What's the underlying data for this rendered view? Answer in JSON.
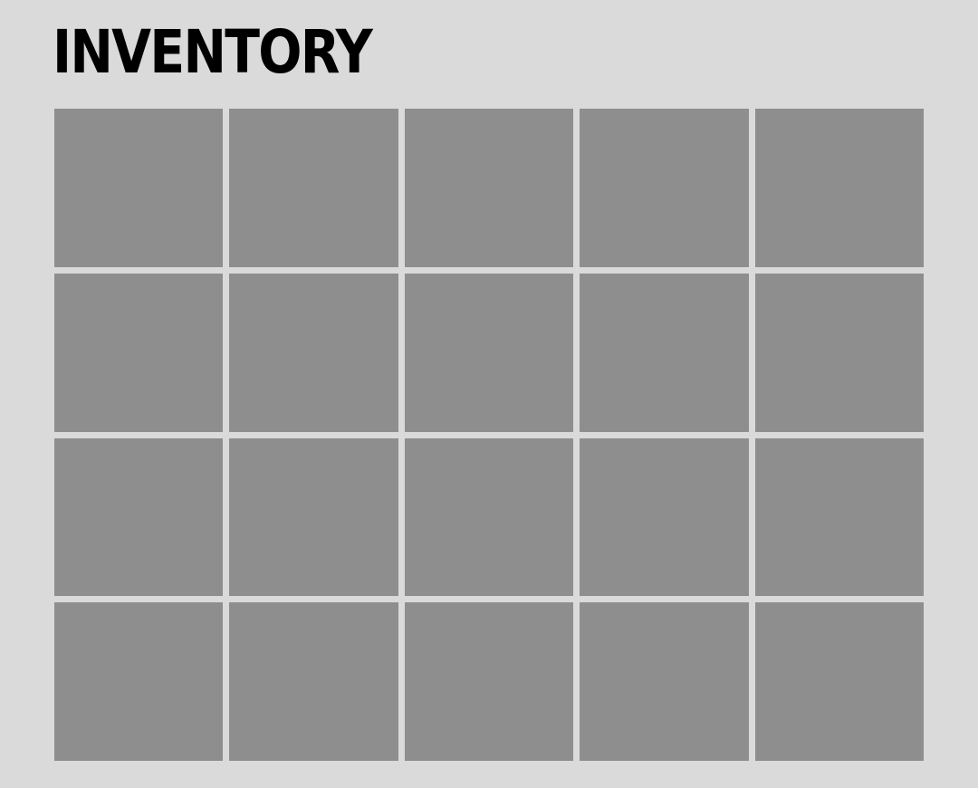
{
  "inventory": {
    "title": "INVENTORY",
    "rows": 4,
    "columns": 5,
    "slots": [
      {
        "item": null
      },
      {
        "item": null
      },
      {
        "item": null
      },
      {
        "item": null
      },
      {
        "item": null
      },
      {
        "item": null
      },
      {
        "item": null
      },
      {
        "item": null
      },
      {
        "item": null
      },
      {
        "item": null
      },
      {
        "item": null
      },
      {
        "item": null
      },
      {
        "item": null
      },
      {
        "item": null
      },
      {
        "item": null
      },
      {
        "item": null
      },
      {
        "item": null
      },
      {
        "item": null
      },
      {
        "item": null
      },
      {
        "item": null
      }
    ]
  },
  "colors": {
    "background": "#dadada",
    "slot": "#8e8e8e",
    "title": "#000000"
  }
}
